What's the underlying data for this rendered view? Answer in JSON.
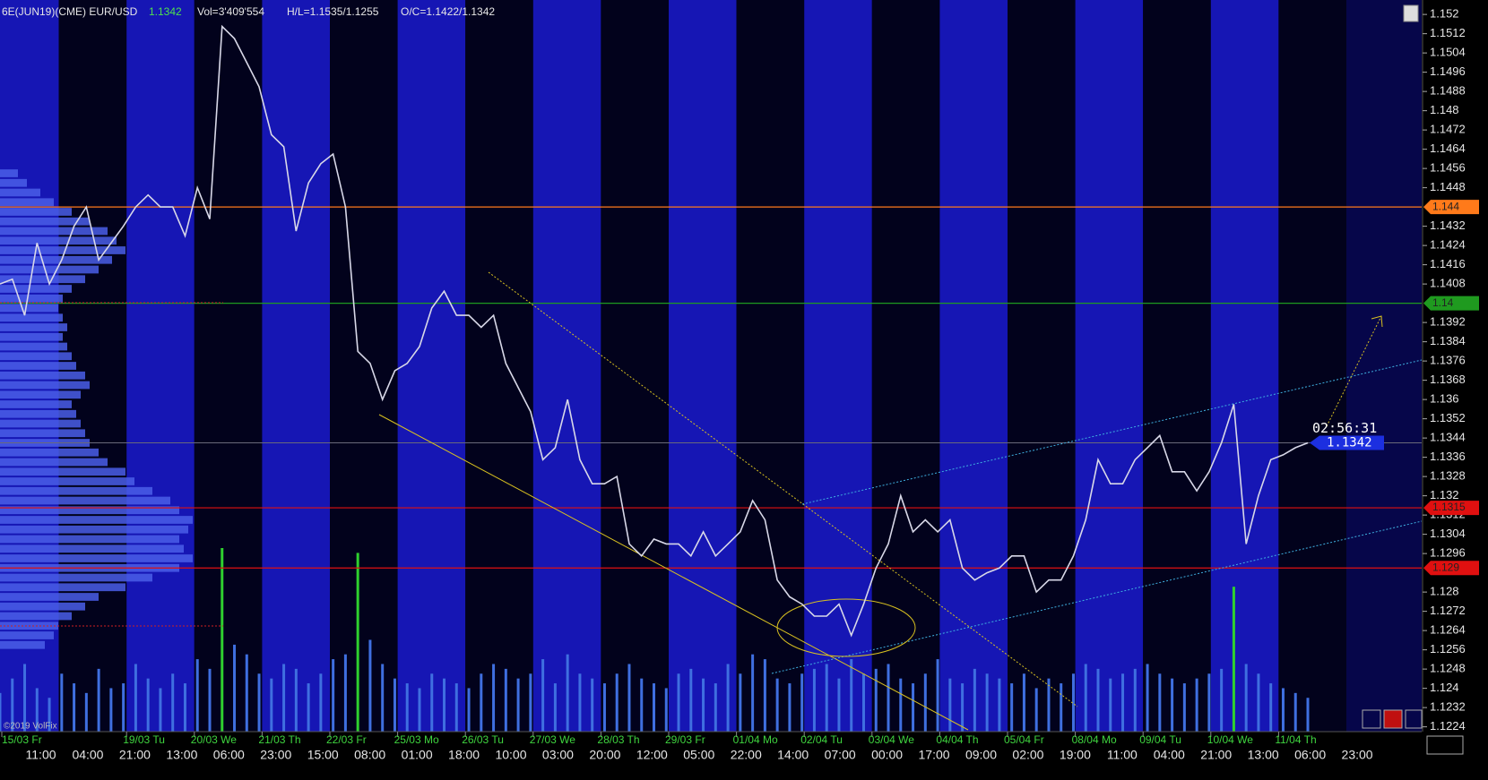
{
  "chart_data": {
    "type": "line",
    "title": "6E(JUN19)(CME) EUR/USD",
    "header": {
      "vol": "Vol=3'409'554",
      "hl": "H/L=1.1535/1.1255",
      "oc": "O/C=1.1422/1.1342"
    },
    "copyright": "©2019 VolFix",
    "color": "#d8d8e8",
    "categories": [
      null,
      null,
      null,
      null,
      null,
      null,
      null,
      null,
      null,
      null,
      null,
      null,
      null,
      null,
      null,
      null,
      null,
      null,
      null,
      null,
      null,
      null,
      null,
      null,
      null,
      null,
      null,
      null,
      null,
      null,
      null,
      null,
      null,
      null,
      null,
      null,
      null,
      null,
      null,
      null,
      null,
      null,
      null,
      null,
      null,
      null,
      null,
      null,
      null,
      null,
      null,
      null,
      null,
      null,
      null,
      null,
      null,
      null,
      null,
      null,
      null,
      null,
      null,
      null,
      null,
      null,
      null,
      null,
      null,
      null,
      null,
      null,
      null,
      null,
      null,
      null,
      null,
      null,
      null,
      null,
      null,
      null,
      null,
      null,
      null,
      null,
      null,
      null,
      null,
      null,
      null,
      null,
      null,
      null,
      null,
      null,
      null,
      null,
      null,
      null,
      null,
      null,
      null,
      null,
      null,
      null,
      null
    ],
    "values": [
      1.1408,
      1.141,
      1.1395,
      1.1425,
      1.1408,
      1.1418,
      1.1432,
      1.144,
      1.1418,
      1.1425,
      1.1432,
      1.144,
      1.1445,
      1.144,
      1.144,
      1.1428,
      1.1448,
      1.1435,
      1.1515,
      1.151,
      1.15,
      1.149,
      1.147,
      1.1465,
      1.143,
      1.145,
      1.1458,
      1.1462,
      1.144,
      1.138,
      1.1375,
      1.136,
      1.1372,
      1.1375,
      1.1382,
      1.1398,
      1.1405,
      1.1395,
      1.1395,
      1.139,
      1.1395,
      1.1375,
      1.1365,
      1.1355,
      1.1335,
      1.134,
      1.136,
      1.1335,
      1.1325,
      1.1325,
      1.1328,
      1.13,
      1.1295,
      1.1302,
      1.13,
      1.13,
      1.1295,
      1.1305,
      1.1295,
      1.13,
      1.1305,
      1.1318,
      1.131,
      1.1285,
      1.1278,
      1.1275,
      1.127,
      1.127,
      1.1275,
      1.1262,
      1.1275,
      1.129,
      1.13,
      1.132,
      1.1305,
      1.131,
      1.1305,
      1.131,
      1.129,
      1.1285,
      1.1288,
      1.129,
      1.1295,
      1.1295,
      1.128,
      1.1285,
      1.1285,
      1.1295,
      1.131,
      1.1335,
      1.1325,
      1.1325,
      1.1335,
      1.134,
      1.1345,
      1.133,
      1.133,
      1.1322,
      1.133,
      1.1342,
      1.1358,
      1.13,
      1.132,
      1.1335,
      1.1337,
      1.134,
      1.1342
    ],
    "volume": [
      40,
      55,
      70,
      45,
      35,
      60,
      50,
      40,
      65,
      45,
      50,
      70,
      55,
      45,
      60,
      50,
      75,
      65,
      190,
      90,
      80,
      60,
      55,
      70,
      65,
      50,
      60,
      75,
      80,
      185,
      95,
      70,
      55,
      50,
      45,
      60,
      55,
      50,
      45,
      60,
      70,
      65,
      55,
      60,
      75,
      50,
      80,
      60,
      55,
      50,
      60,
      70,
      55,
      50,
      45,
      60,
      65,
      55,
      50,
      70,
      60,
      80,
      75,
      55,
      50,
      60,
      65,
      70,
      55,
      75,
      60,
      65,
      70,
      55,
      50,
      60,
      75,
      55,
      50,
      65,
      60,
      55,
      50,
      60,
      45,
      55,
      50,
      60,
      70,
      65,
      55,
      60,
      65,
      70,
      60,
      55,
      50,
      55,
      60,
      65,
      150,
      70,
      60,
      50,
      45,
      40,
      35
    ],
    "profile": {
      "bins": [
        1.1256,
        1.126,
        1.1264,
        1.1268,
        1.1272,
        1.1276,
        1.128,
        1.1284,
        1.1288,
        1.1292,
        1.1296,
        1.13,
        1.1304,
        1.1308,
        1.1312,
        1.1316,
        1.132,
        1.1324,
        1.1328,
        1.1332,
        1.1336,
        1.134,
        1.1344,
        1.1348,
        1.1352,
        1.1356,
        1.136,
        1.1364,
        1.1368,
        1.1372,
        1.1376,
        1.138,
        1.1384,
        1.1388,
        1.1392,
        1.1396,
        1.14,
        1.1404,
        1.1408,
        1.1412,
        1.1416,
        1.142,
        1.1424,
        1.1428,
        1.1432,
        1.1436,
        1.144,
        1.1444,
        1.1448,
        1.1452,
        1.1456
      ],
      "counts": [
        50,
        60,
        65,
        80,
        95,
        110,
        140,
        170,
        200,
        215,
        205,
        200,
        210,
        215,
        200,
        190,
        170,
        150,
        140,
        120,
        110,
        100,
        95,
        90,
        85,
        80,
        90,
        100,
        95,
        85,
        80,
        75,
        70,
        75,
        70,
        65,
        70,
        80,
        95,
        110,
        125,
        140,
        130,
        120,
        100,
        80,
        60,
        45,
        30,
        20
      ],
      "color": "#4a5ee8"
    },
    "volume_color": "#3f6fe0",
    "ylim": [
      1.1222,
      1.1526
    ],
    "yticks": [
      1.152,
      1.1512,
      1.1504,
      1.1496,
      1.1488,
      1.148,
      1.1472,
      1.1464,
      1.1456,
      1.1448,
      1.1432,
      1.1424,
      1.1416,
      1.1408,
      1.1392,
      1.1384,
      1.1376,
      1.1368,
      1.136,
      1.1352,
      1.1344,
      1.1336,
      1.1328,
      1.132,
      1.1312,
      1.1304,
      1.1296,
      1.128,
      1.1272,
      1.1264,
      1.1256,
      1.1248,
      1.124,
      1.1232,
      1.1224
    ],
    "levels": [
      {
        "value": 1.144,
        "color": "#ff7a1a"
      },
      {
        "value": 1.14,
        "color": "#1f9a1f"
      },
      {
        "value": 1.1315,
        "color": "#e01010"
      },
      {
        "value": 1.129,
        "color": "#e01010"
      }
    ],
    "last": {
      "value": 1.1342,
      "timer": "02:56:31",
      "color": "#1c2fe0"
    },
    "dates": [
      "15/03 Fr",
      "19/03 Tu",
      "20/03 We",
      "21/03 Th",
      "22/03 Fr",
      "25/03 Mo",
      "26/03 Tu",
      "27/03 We",
      "28/03 Th",
      "29/03 Fr",
      "01/04 Mo",
      "02/04 Tu",
      "03/04 We",
      "04/04 Th",
      "05/04 Fr",
      "08/04 Mo",
      "09/04 Tu",
      "10/04 We",
      "11/04 Th"
    ],
    "times": [
      "11:00",
      "04:00",
      "21:00",
      "13:00",
      "06:00",
      "23:00",
      "15:00",
      "08:00",
      "01:00",
      "18:00",
      "10:00",
      "03:00",
      "20:00",
      "12:00",
      "05:00",
      "22:00",
      "14:00",
      "07:00",
      "00:00",
      "17:00",
      "09:00",
      "02:00",
      "19:00",
      "11:00",
      "04:00",
      "21:00",
      "13:00",
      "06:00",
      "23:00"
    ]
  }
}
